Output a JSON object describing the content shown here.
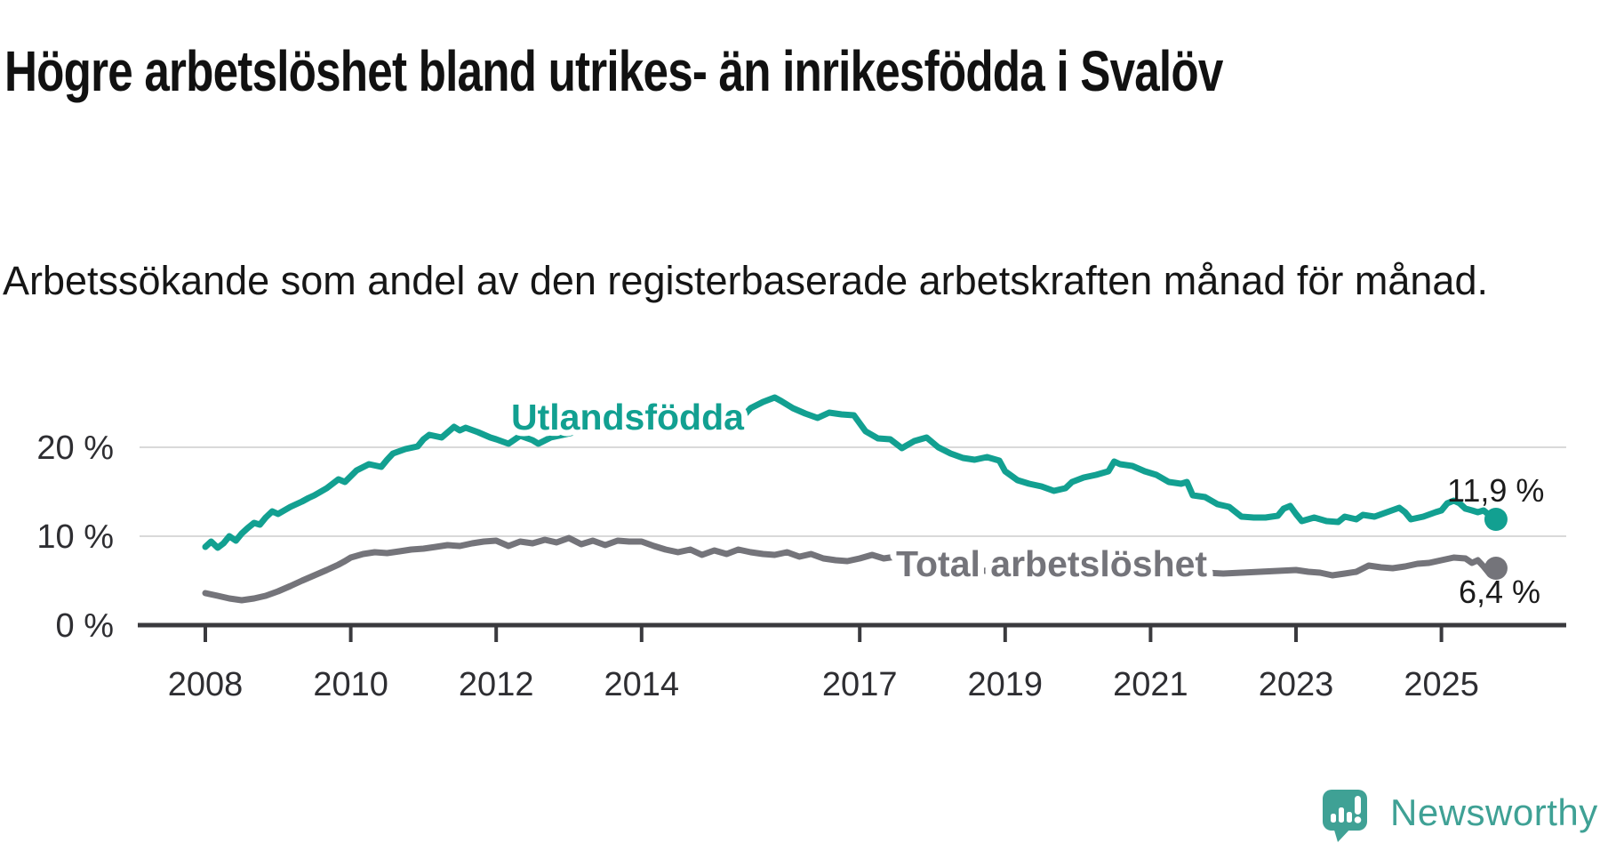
{
  "title": "Högre arbetslöshet bland utrikes- än inrikesfödda i Svalöv",
  "subtitle": "Arbetssökande som andel av den registerbaserade arbetskraften månad för månad.",
  "branding": {
    "wordmark": "Newsworthy",
    "color": "#3fa195"
  },
  "colors": {
    "grid": "#d9d9d9",
    "axis": "#3a3a3e",
    "tick_label": "#2e2e32",
    "value_label": "#1b1b1b",
    "background": "#ffffff"
  },
  "chart_data": {
    "type": "line",
    "title": "Högre arbetslöshet bland utrikes- än inrikesfödda i Svalöv",
    "subtitle": "Arbetssökande som andel av den registerbaserade arbetskraften månad för månad.",
    "xlabel": "",
    "ylabel": "",
    "x_axis": {
      "ticks": [
        2008,
        2010,
        2012,
        2014,
        2017,
        2019,
        2021,
        2023,
        2025
      ],
      "tick_labels": [
        "2008",
        "2010",
        "2012",
        "2014",
        "2017",
        "2019",
        "2021",
        "2023",
        "2025"
      ],
      "range": [
        2008,
        2026
      ]
    },
    "y_axis": {
      "ticks": [
        0,
        10,
        20
      ],
      "tick_labels": [
        "0 %",
        "10 %",
        "20 %"
      ],
      "range": [
        0,
        28
      ],
      "grid": true
    },
    "legend_position": "inline-labels",
    "series": [
      {
        "name": "Utlandsfödda",
        "color": "#12a091",
        "end_label": "11,9 %",
        "points": [
          [
            2008.0,
            8.8
          ],
          [
            2008.08,
            9.4
          ],
          [
            2008.17,
            8.7
          ],
          [
            2008.25,
            9.2
          ],
          [
            2008.33,
            10.0
          ],
          [
            2008.42,
            9.5
          ],
          [
            2008.5,
            10.3
          ],
          [
            2008.58,
            10.9
          ],
          [
            2008.67,
            11.5
          ],
          [
            2008.75,
            11.3
          ],
          [
            2008.83,
            12.1
          ],
          [
            2008.92,
            12.8
          ],
          [
            2009.0,
            12.5
          ],
          [
            2009.17,
            13.3
          ],
          [
            2009.33,
            13.9
          ],
          [
            2009.42,
            14.3
          ],
          [
            2009.5,
            14.6
          ],
          [
            2009.67,
            15.4
          ],
          [
            2009.83,
            16.4
          ],
          [
            2009.92,
            16.1
          ],
          [
            2010.08,
            17.4
          ],
          [
            2010.25,
            18.1
          ],
          [
            2010.42,
            17.8
          ],
          [
            2010.5,
            18.6
          ],
          [
            2010.58,
            19.3
          ],
          [
            2010.75,
            19.8
          ],
          [
            2010.92,
            20.1
          ],
          [
            2011.0,
            20.9
          ],
          [
            2011.08,
            21.4
          ],
          [
            2011.25,
            21.1
          ],
          [
            2011.42,
            22.3
          ],
          [
            2011.5,
            21.9
          ],
          [
            2011.58,
            22.2
          ],
          [
            2011.75,
            21.7
          ],
          [
            2011.92,
            21.1
          ],
          [
            2012.0,
            20.9
          ],
          [
            2012.17,
            20.4
          ],
          [
            2012.33,
            21.3
          ],
          [
            2012.5,
            20.8
          ],
          [
            2012.58,
            20.4
          ],
          [
            2012.75,
            21.1
          ],
          [
            2012.92,
            21.4
          ],
          [
            2013.08,
            21.7
          ],
          [
            2013.25,
            22.0
          ],
          [
            2013.42,
            21.7
          ],
          [
            2013.58,
            22.3
          ],
          [
            2013.75,
            22.0
          ],
          [
            2013.92,
            22.4
          ],
          [
            2014.08,
            22.1
          ],
          [
            2014.25,
            22.6
          ],
          [
            2014.42,
            22.4
          ],
          [
            2014.58,
            22.8
          ],
          [
            2014.75,
            23.2
          ],
          [
            2014.92,
            22.7
          ],
          [
            2015.0,
            22.4
          ],
          [
            2015.17,
            23.4
          ],
          [
            2015.33,
            22.9
          ],
          [
            2015.5,
            24.4
          ],
          [
            2015.67,
            25.1
          ],
          [
            2015.83,
            25.6
          ],
          [
            2015.92,
            25.2
          ],
          [
            2016.08,
            24.4
          ],
          [
            2016.25,
            23.8
          ],
          [
            2016.42,
            23.3
          ],
          [
            2016.58,
            23.9
          ],
          [
            2016.75,
            23.7
          ],
          [
            2016.92,
            23.6
          ],
          [
            2017.08,
            21.8
          ],
          [
            2017.25,
            21.0
          ],
          [
            2017.42,
            20.9
          ],
          [
            2017.58,
            19.9
          ],
          [
            2017.75,
            20.7
          ],
          [
            2017.92,
            21.1
          ],
          [
            2018.08,
            20.0
          ],
          [
            2018.25,
            19.3
          ],
          [
            2018.42,
            18.8
          ],
          [
            2018.58,
            18.6
          ],
          [
            2018.75,
            18.9
          ],
          [
            2018.92,
            18.5
          ],
          [
            2019.0,
            17.3
          ],
          [
            2019.17,
            16.3
          ],
          [
            2019.33,
            15.9
          ],
          [
            2019.5,
            15.6
          ],
          [
            2019.67,
            15.1
          ],
          [
            2019.83,
            15.4
          ],
          [
            2019.92,
            16.1
          ],
          [
            2020.08,
            16.6
          ],
          [
            2020.25,
            16.9
          ],
          [
            2020.42,
            17.3
          ],
          [
            2020.5,
            18.4
          ],
          [
            2020.58,
            18.1
          ],
          [
            2020.75,
            17.9
          ],
          [
            2020.92,
            17.3
          ],
          [
            2021.08,
            16.9
          ],
          [
            2021.25,
            16.1
          ],
          [
            2021.42,
            15.9
          ],
          [
            2021.5,
            16.1
          ],
          [
            2021.58,
            14.6
          ],
          [
            2021.75,
            14.4
          ],
          [
            2021.92,
            13.6
          ],
          [
            2022.08,
            13.3
          ],
          [
            2022.25,
            12.2
          ],
          [
            2022.42,
            12.1
          ],
          [
            2022.58,
            12.1
          ],
          [
            2022.75,
            12.3
          ],
          [
            2022.83,
            13.1
          ],
          [
            2022.92,
            13.4
          ],
          [
            2023.0,
            12.5
          ],
          [
            2023.08,
            11.7
          ],
          [
            2023.25,
            12.1
          ],
          [
            2023.42,
            11.7
          ],
          [
            2023.58,
            11.6
          ],
          [
            2023.67,
            12.2
          ],
          [
            2023.83,
            11.9
          ],
          [
            2023.92,
            12.4
          ],
          [
            2024.08,
            12.2
          ],
          [
            2024.25,
            12.7
          ],
          [
            2024.42,
            13.2
          ],
          [
            2024.5,
            12.7
          ],
          [
            2024.58,
            11.9
          ],
          [
            2024.75,
            12.2
          ],
          [
            2024.92,
            12.7
          ],
          [
            2025.0,
            12.9
          ],
          [
            2025.08,
            13.7
          ],
          [
            2025.17,
            14.0
          ],
          [
            2025.25,
            13.7
          ],
          [
            2025.33,
            13.1
          ],
          [
            2025.42,
            12.9
          ],
          [
            2025.5,
            12.7
          ],
          [
            2025.58,
            12.9
          ],
          [
            2025.67,
            12.3
          ],
          [
            2025.75,
            11.9
          ]
        ]
      },
      {
        "name": "Total arbetslöshet",
        "color": "#74747a",
        "end_label": "6,4 %",
        "points": [
          [
            2008.0,
            3.6
          ],
          [
            2008.17,
            3.3
          ],
          [
            2008.33,
            3.0
          ],
          [
            2008.5,
            2.8
          ],
          [
            2008.67,
            3.0
          ],
          [
            2008.83,
            3.3
          ],
          [
            2009.0,
            3.8
          ],
          [
            2009.17,
            4.4
          ],
          [
            2009.33,
            5.0
          ],
          [
            2009.5,
            5.6
          ],
          [
            2009.67,
            6.2
          ],
          [
            2009.83,
            6.8
          ],
          [
            2009.92,
            7.2
          ],
          [
            2010.0,
            7.6
          ],
          [
            2010.17,
            8.0
          ],
          [
            2010.33,
            8.2
          ],
          [
            2010.5,
            8.1
          ],
          [
            2010.67,
            8.3
          ],
          [
            2010.83,
            8.5
          ],
          [
            2011.0,
            8.6
          ],
          [
            2011.17,
            8.8
          ],
          [
            2011.33,
            9.0
          ],
          [
            2011.5,
            8.9
          ],
          [
            2011.67,
            9.2
          ],
          [
            2011.83,
            9.4
          ],
          [
            2012.0,
            9.5
          ],
          [
            2012.17,
            8.9
          ],
          [
            2012.33,
            9.4
          ],
          [
            2012.5,
            9.2
          ],
          [
            2012.67,
            9.6
          ],
          [
            2012.83,
            9.3
          ],
          [
            2013.0,
            9.8
          ],
          [
            2013.17,
            9.1
          ],
          [
            2013.33,
            9.5
          ],
          [
            2013.5,
            9.0
          ],
          [
            2013.67,
            9.5
          ],
          [
            2013.83,
            9.4
          ],
          [
            2014.0,
            9.4
          ],
          [
            2014.17,
            8.9
          ],
          [
            2014.33,
            8.5
          ],
          [
            2014.5,
            8.2
          ],
          [
            2014.67,
            8.5
          ],
          [
            2014.83,
            7.9
          ],
          [
            2015.0,
            8.4
          ],
          [
            2015.17,
            8.0
          ],
          [
            2015.33,
            8.5
          ],
          [
            2015.5,
            8.2
          ],
          [
            2015.67,
            8.0
          ],
          [
            2015.83,
            7.9
          ],
          [
            2016.0,
            8.2
          ],
          [
            2016.17,
            7.7
          ],
          [
            2016.33,
            8.0
          ],
          [
            2016.5,
            7.5
          ],
          [
            2016.67,
            7.3
          ],
          [
            2016.83,
            7.2
          ],
          [
            2017.0,
            7.5
          ],
          [
            2017.17,
            7.9
          ],
          [
            2017.33,
            7.5
          ],
          [
            2017.5,
            7.7
          ],
          [
            2017.67,
            7.2
          ],
          [
            2017.83,
            7.0
          ],
          [
            2018.0,
            6.8
          ],
          [
            2018.25,
            6.5
          ],
          [
            2018.5,
            6.2
          ],
          [
            2018.75,
            6.1
          ],
          [
            2019.0,
            6.0
          ],
          [
            2019.25,
            6.1
          ],
          [
            2019.5,
            6.3
          ],
          [
            2019.75,
            6.5
          ],
          [
            2020.0,
            6.6
          ],
          [
            2020.25,
            6.9
          ],
          [
            2020.5,
            6.7
          ],
          [
            2020.75,
            6.5
          ],
          [
            2021.0,
            6.4
          ],
          [
            2021.25,
            6.2
          ],
          [
            2021.5,
            6.0
          ],
          [
            2021.75,
            5.9
          ],
          [
            2022.0,
            5.8
          ],
          [
            2022.25,
            5.9
          ],
          [
            2022.5,
            6.0
          ],
          [
            2022.75,
            6.1
          ],
          [
            2023.0,
            6.2
          ],
          [
            2023.17,
            6.0
          ],
          [
            2023.33,
            5.9
          ],
          [
            2023.5,
            5.6
          ],
          [
            2023.67,
            5.8
          ],
          [
            2023.83,
            6.0
          ],
          [
            2024.0,
            6.7
          ],
          [
            2024.17,
            6.5
          ],
          [
            2024.33,
            6.4
          ],
          [
            2024.5,
            6.6
          ],
          [
            2024.67,
            6.9
          ],
          [
            2024.83,
            7.0
          ],
          [
            2025.0,
            7.3
          ],
          [
            2025.17,
            7.6
          ],
          [
            2025.33,
            7.5
          ],
          [
            2025.42,
            7.0
          ],
          [
            2025.5,
            7.3
          ],
          [
            2025.58,
            6.6
          ],
          [
            2025.67,
            5.7
          ],
          [
            2025.75,
            6.4
          ]
        ]
      }
    ]
  }
}
